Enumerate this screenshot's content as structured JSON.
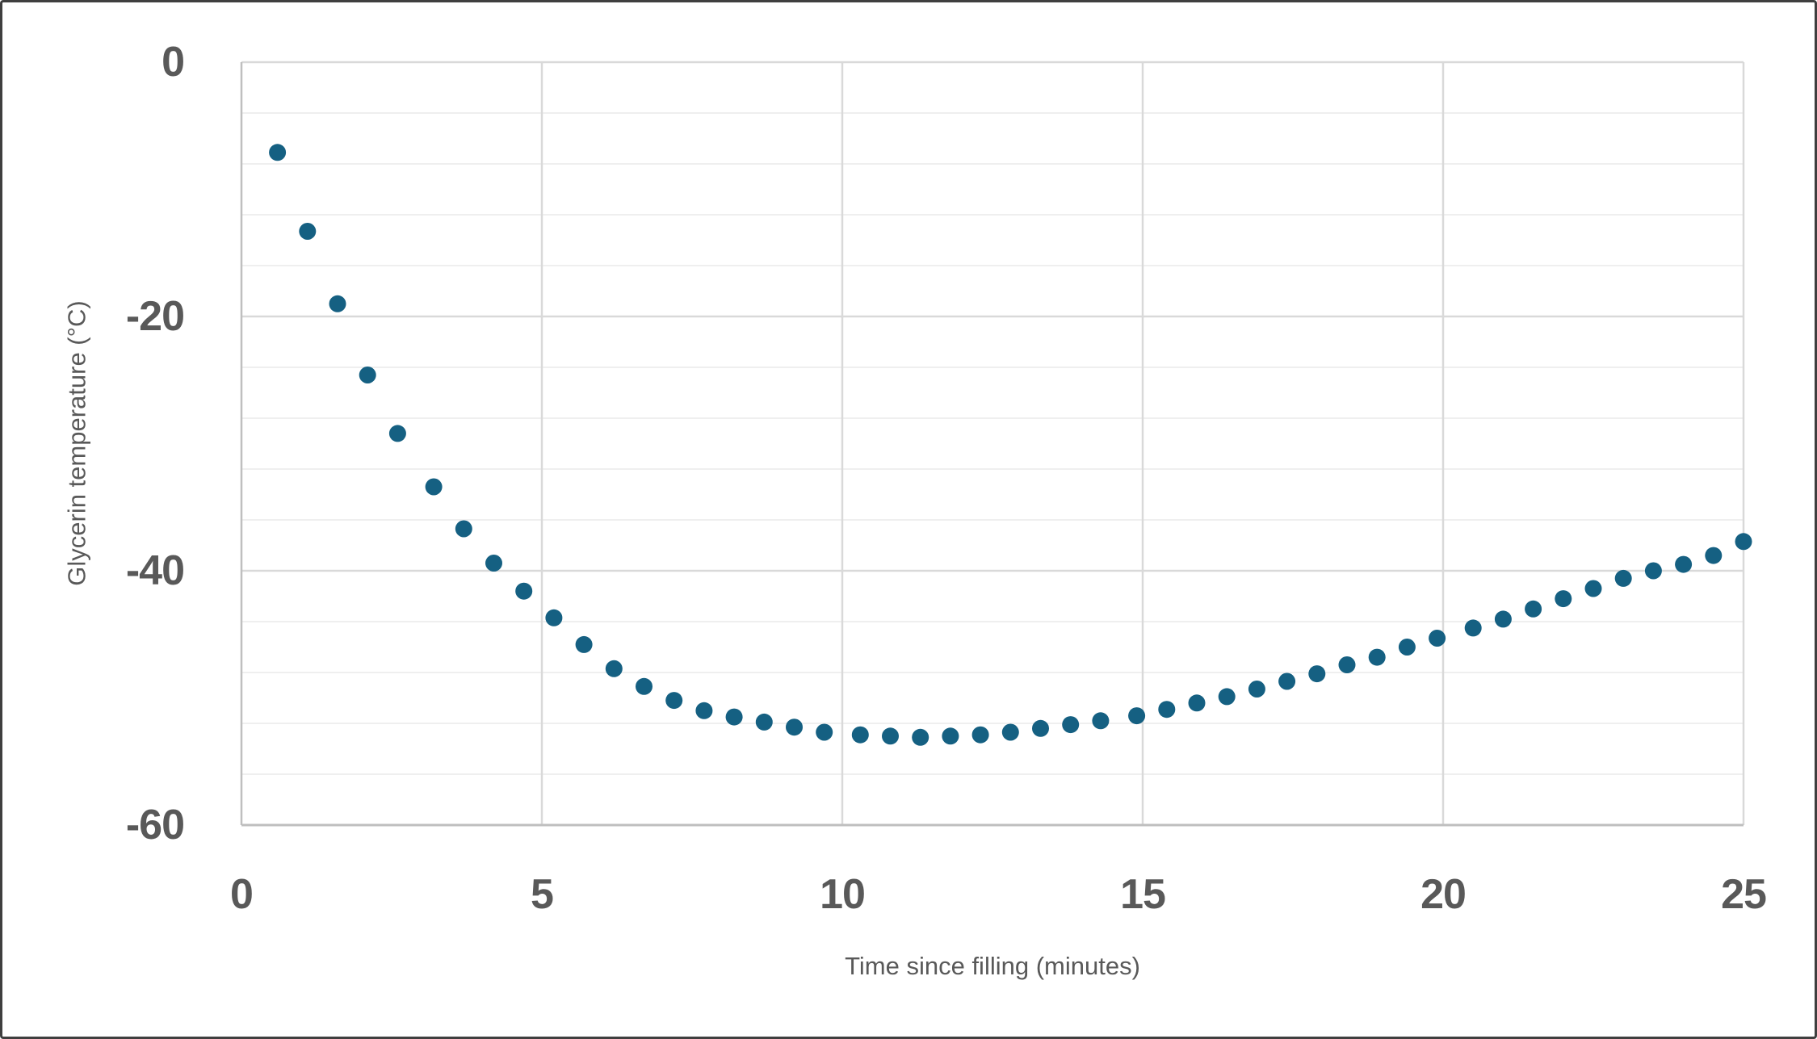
{
  "chart_data": {
    "type": "scatter",
    "title": "",
    "xlabel": "Time since filling (minutes)",
    "ylabel": "Glycerin temperature (°C)",
    "xlim": [
      0,
      25
    ],
    "ylim": [
      -60,
      0
    ],
    "x_ticks": [
      0,
      5,
      10,
      15,
      20,
      25
    ],
    "y_ticks": [
      0,
      -20,
      -40,
      -60
    ],
    "x_major_unit": 5,
    "y_major_unit": 20,
    "y_minor_unit": 4,
    "legend_position": "none",
    "grid": {
      "vertical_major": true,
      "horizontal_major": true,
      "horizontal_minor": true,
      "vertical_minor": false
    },
    "colors": {
      "marker": "#156082",
      "axis_text": "#595959",
      "major_grid": "#D9D9D9",
      "minor_grid": "#EFEFEF",
      "axis_line": "#BFBFBF",
      "frame_border": "#3F3F3F",
      "background": "#FFFFFF"
    },
    "series": [
      {
        "name": "Glycerin temperature",
        "marker": "circle",
        "color": "#156082",
        "points": [
          [
            0.6,
            -7.1
          ],
          [
            1.1,
            -13.3
          ],
          [
            1.6,
            -19.0
          ],
          [
            2.1,
            -24.6
          ],
          [
            2.6,
            -29.2
          ],
          [
            3.2,
            -33.4
          ],
          [
            3.7,
            -36.7
          ],
          [
            4.2,
            -39.4
          ],
          [
            4.7,
            -41.6
          ],
          [
            5.2,
            -43.7
          ],
          [
            5.7,
            -45.8
          ],
          [
            6.2,
            -47.7
          ],
          [
            6.7,
            -49.1
          ],
          [
            7.2,
            -50.2
          ],
          [
            7.7,
            -51.0
          ],
          [
            8.2,
            -51.5
          ],
          [
            8.7,
            -51.9
          ],
          [
            9.2,
            -52.3
          ],
          [
            9.7,
            -52.7
          ],
          [
            10.3,
            -52.9
          ],
          [
            10.8,
            -53.0
          ],
          [
            11.3,
            -53.1
          ],
          [
            11.8,
            -53.0
          ],
          [
            12.3,
            -52.9
          ],
          [
            12.8,
            -52.7
          ],
          [
            13.3,
            -52.4
          ],
          [
            13.8,
            -52.1
          ],
          [
            14.3,
            -51.8
          ],
          [
            14.9,
            -51.4
          ],
          [
            15.4,
            -50.9
          ],
          [
            15.9,
            -50.4
          ],
          [
            16.4,
            -49.9
          ],
          [
            16.9,
            -49.3
          ],
          [
            17.4,
            -48.7
          ],
          [
            17.9,
            -48.1
          ],
          [
            18.4,
            -47.4
          ],
          [
            18.9,
            -46.8
          ],
          [
            19.4,
            -46.0
          ],
          [
            19.9,
            -45.3
          ],
          [
            20.5,
            -44.5
          ],
          [
            21.0,
            -43.8
          ],
          [
            21.5,
            -43.0
          ],
          [
            22.0,
            -42.2
          ],
          [
            22.5,
            -41.4
          ],
          [
            23.0,
            -40.6
          ],
          [
            23.5,
            -40.0
          ],
          [
            24.0,
            -39.5
          ],
          [
            24.5,
            -38.8
          ],
          [
            25.0,
            -37.7
          ]
        ]
      }
    ]
  }
}
